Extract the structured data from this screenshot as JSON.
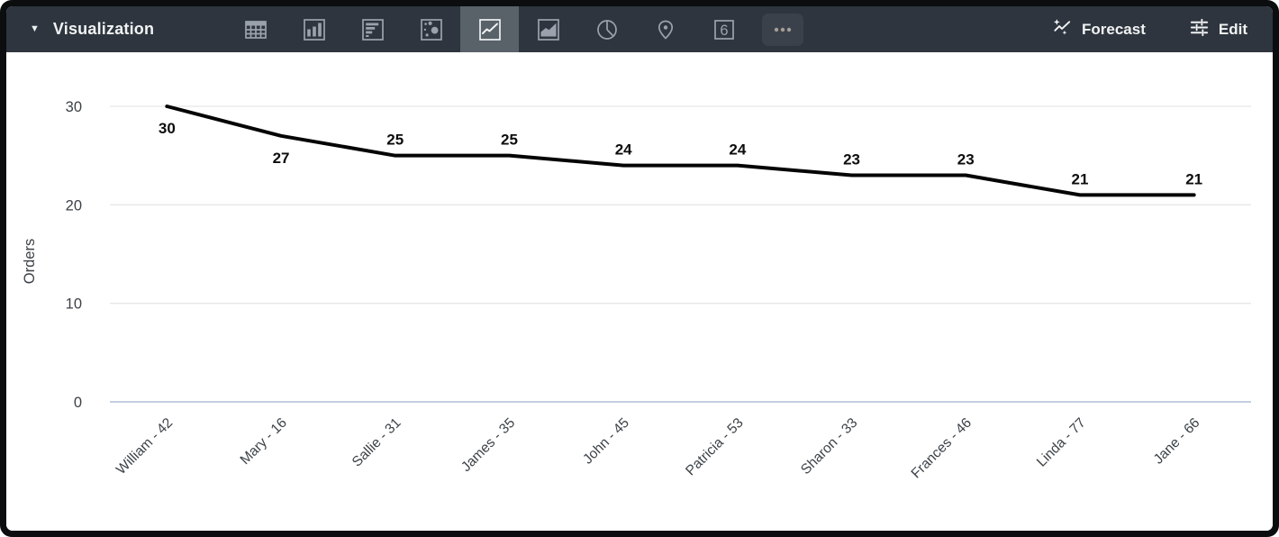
{
  "toolbar": {
    "title": "Visualization",
    "forecast_label": "Forecast",
    "edit_label": "Edit",
    "viz_types": [
      {
        "id": "table",
        "icon": "table-icon",
        "selected": false
      },
      {
        "id": "column",
        "icon": "column-chart-icon",
        "selected": false
      },
      {
        "id": "bar",
        "icon": "bar-chart-icon",
        "selected": false
      },
      {
        "id": "scatter",
        "icon": "scatter-chart-icon",
        "selected": false
      },
      {
        "id": "line",
        "icon": "line-chart-icon",
        "selected": true
      },
      {
        "id": "area",
        "icon": "area-chart-icon",
        "selected": false
      },
      {
        "id": "pie",
        "icon": "pie-chart-icon",
        "selected": false
      },
      {
        "id": "map",
        "icon": "map-pin-icon",
        "selected": false
      },
      {
        "id": "single-value",
        "icon": "single-value-icon",
        "label": "6",
        "selected": false
      },
      {
        "id": "more",
        "icon": "more-options-icon",
        "selected": false
      }
    ]
  },
  "colors": {
    "toolbar_bg": "#2e353e",
    "toolbar_selected_bg": "#596169",
    "toolbar_icon": "#9aa3ad",
    "toolbar_icon_selected": "#eef1f3",
    "toolbar_text": "#f1f3f4",
    "more_dots": "#a59e96",
    "more_bg": "#3a414b",
    "chart_line": "#050505",
    "grid_line": "#e7e7e7",
    "x_axis_line": "#c4cfe0",
    "axis_text": "#3c4248",
    "data_label_text": "#0d0d0d"
  },
  "chart_data": {
    "type": "line",
    "title": "",
    "xlabel": "",
    "ylabel": "Orders",
    "categories": [
      "William - 42",
      "Mary - 16",
      "Sallie - 31",
      "James - 35",
      "John - 45",
      "Patricia - 53",
      "Sharon - 33",
      "Frances - 46",
      "Linda - 77",
      "Jane - 66"
    ],
    "series": [
      {
        "name": "Orders",
        "values": [
          30,
          27,
          25,
          25,
          24,
          24,
          23,
          23,
          21,
          21
        ]
      }
    ],
    "data_labels": [
      "30",
      "27",
      "25",
      "25",
      "24",
      "24",
      "23",
      "23",
      "21",
      "21"
    ],
    "yticks": [
      0,
      10,
      20,
      30
    ],
    "ylim": [
      0,
      32
    ],
    "grid": true,
    "legend": "none"
  }
}
